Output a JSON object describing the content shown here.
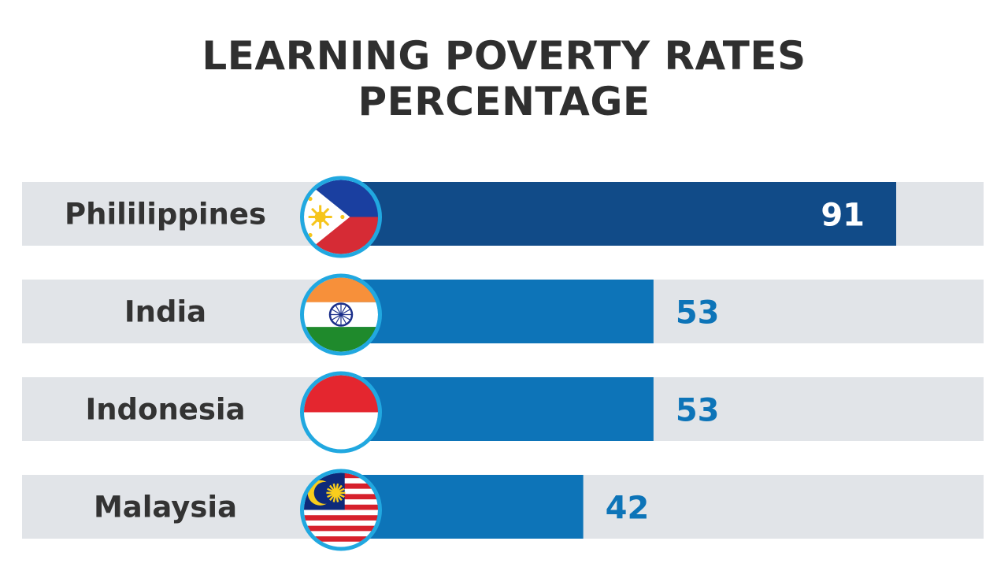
{
  "chart_data": {
    "type": "bar",
    "orientation": "horizontal",
    "title": "LEARNING POVERTY RATES",
    "subtitle": "PERCENTAGE",
    "categories": [
      "Phililippines",
      "India",
      "Indonesia",
      "Malaysia"
    ],
    "values": [
      91,
      53,
      53,
      42
    ],
    "flags": [
      "philippines-flag",
      "india-flag",
      "indonesia-flag",
      "malaysia-flag"
    ],
    "xlim": [
      0,
      100
    ],
    "grid": false,
    "legend": "none"
  },
  "colors": {
    "background": "#ffffff",
    "track": "#e1e4e8",
    "bar_highlight": "#114b88",
    "bar": "#0d74b8",
    "value_on_bar": "#ffffff",
    "value_outside": "#0d74b8",
    "label": "#333333",
    "flag_ring": "#21a8e0",
    "title": "#2f2f2f"
  }
}
